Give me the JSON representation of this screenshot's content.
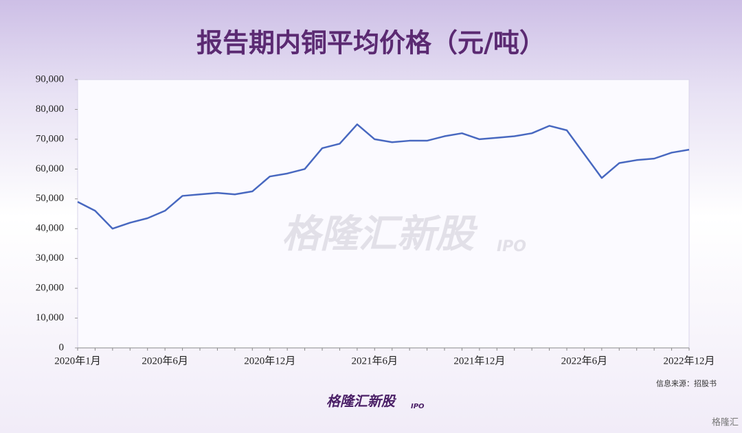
{
  "chart_data": {
    "type": "line",
    "title": "报告期内铜平均价格（元/吨）",
    "source": "信息来源：招股书",
    "watermark": "格隆汇新股",
    "watermark_sub": "IPO",
    "logo": "格隆汇新股",
    "logo_sub": "IPO",
    "corner_logo": "格隆汇",
    "categories": [
      "2020年1月",
      null,
      null,
      null,
      null,
      "2020年6月",
      null,
      null,
      null,
      null,
      null,
      "2020年12月",
      null,
      null,
      null,
      null,
      null,
      "2021年6月",
      null,
      null,
      null,
      null,
      null,
      "2021年12月",
      null,
      null,
      null,
      null,
      null,
      "2022年6月",
      null,
      null,
      null,
      null,
      null,
      "2022年12月"
    ],
    "series": [
      {
        "name": "铜平均价格",
        "color": "#4868c0",
        "values": [
          49000,
          46000,
          40000,
          42000,
          43500,
          46000,
          51000,
          51500,
          52000,
          51500,
          52500,
          57500,
          58500,
          60000,
          67000,
          68500,
          75000,
          70000,
          69000,
          69500,
          69500,
          71000,
          72000,
          70000,
          70500,
          71000,
          72000,
          74500,
          73000,
          65000,
          57000,
          62000,
          63000,
          63500,
          65500,
          66500
        ]
      }
    ],
    "ylim": [
      0,
      90000
    ],
    "yticks": [
      0,
      {
        "value": 10000,
        "label": "10,000"
      },
      {
        "value": 20000,
        "label": "20,000"
      },
      {
        "value": 30000,
        "label": "30,000"
      },
      {
        "value": 40000,
        "label": "40,000"
      },
      {
        "value": 50000,
        "label": "50,000"
      },
      {
        "value": 60000,
        "label": "60,000"
      },
      {
        "value": 70000,
        "label": "70,000"
      },
      {
        "value": 80000,
        "label": "80,000"
      },
      {
        "value": 90000,
        "label": "90,000"
      }
    ],
    "grid": false
  }
}
